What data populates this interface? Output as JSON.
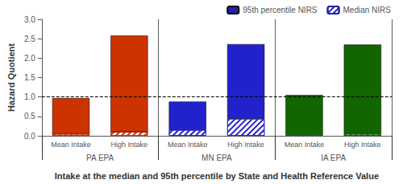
{
  "chart_data": {
    "type": "bar",
    "stacked": true,
    "xlabel": "Intake at the median and 95th percentile by State and Health Reference Value",
    "ylabel": "Hazard Quotient",
    "categories": [
      "Mean Intake",
      "High Intake",
      "Mean Intake",
      "High Intake",
      "Mean Intake",
      "High Intake"
    ],
    "groups": [
      "PA EPA",
      "MN EPA",
      "IA EPA"
    ],
    "series": [
      {
        "name": "Median NIRS",
        "color": "#2222AA",
        "colors": [
          "#CC3300",
          "#CC3300",
          "#2222CC",
          "#2222CC",
          "#116600",
          "#116600"
        ],
        "values": [
          0.05,
          0.1,
          0.15,
          0.44,
          0.04,
          0.05
        ]
      },
      {
        "name": "95th percentile NIRS",
        "color": "#2222AA",
        "colors": [
          "#CC3300",
          "#CC3300",
          "#2222CC",
          "#2222CC",
          "#116600",
          "#116600"
        ],
        "values": [
          0.92,
          2.48,
          0.73,
          1.92,
          1.01,
          2.3
        ]
      }
    ],
    "hlines": [
      1.0
    ],
    "ylim": [
      0,
      3.0
    ],
    "yticks": [
      {
        "value": 0,
        "label": "0.0"
      },
      0.5,
      {
        "value": 1,
        "label": "1.0"
      },
      1.5,
      {
        "value": 2,
        "label": "2.0"
      },
      2.5,
      {
        "value": 3,
        "label": "3.0"
      }
    ],
    "grid": false,
    "legend": "upper right"
  }
}
